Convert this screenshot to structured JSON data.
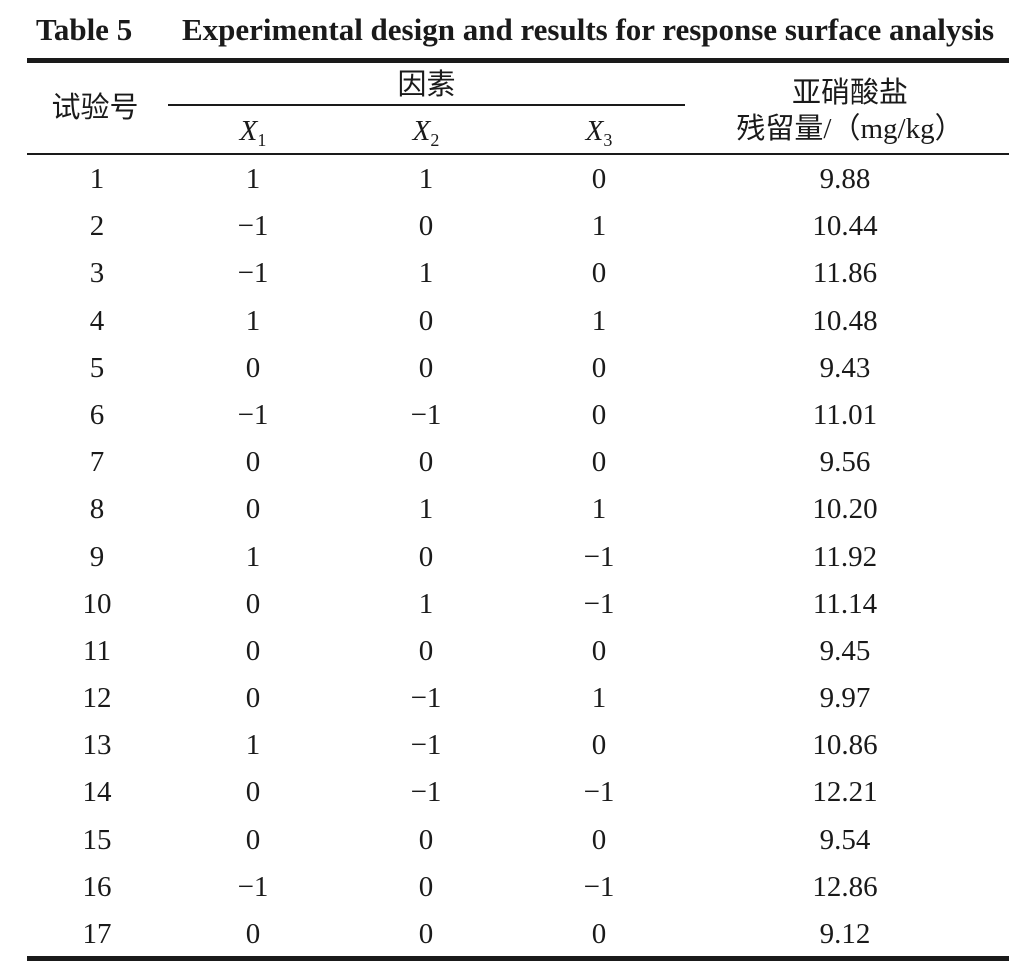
{
  "caption": {
    "label": "Table 5",
    "title": "Experimental design and results for response surface analysis"
  },
  "headers": {
    "trial": "试验号",
    "factors": "因素",
    "x1": "X",
    "x1_sub": "1",
    "x2": "X",
    "x2_sub": "2",
    "x3": "X",
    "x3_sub": "3",
    "response_line1": "亚硝酸盐",
    "response_line2": "残留量/（mg/kg）"
  },
  "rows": [
    {
      "trial": "1",
      "x1": "1",
      "x2": "1",
      "x3": "0",
      "y": "9.88"
    },
    {
      "trial": "2",
      "x1": "−1",
      "x2": "0",
      "x3": "1",
      "y": "10.44"
    },
    {
      "trial": "3",
      "x1": "−1",
      "x2": "1",
      "x3": "0",
      "y": "11.86"
    },
    {
      "trial": "4",
      "x1": "1",
      "x2": "0",
      "x3": "1",
      "y": "10.48"
    },
    {
      "trial": "5",
      "x1": "0",
      "x2": "0",
      "x3": "0",
      "y": "9.43"
    },
    {
      "trial": "6",
      "x1": "−1",
      "x2": "−1",
      "x3": "0",
      "y": "11.01"
    },
    {
      "trial": "7",
      "x1": "0",
      "x2": "0",
      "x3": "0",
      "y": "9.56"
    },
    {
      "trial": "8",
      "x1": "0",
      "x2": "1",
      "x3": "1",
      "y": "10.20"
    },
    {
      "trial": "9",
      "x1": "1",
      "x2": "0",
      "x3": "−1",
      "y": "11.92"
    },
    {
      "trial": "10",
      "x1": "0",
      "x2": "1",
      "x3": "−1",
      "y": "11.14"
    },
    {
      "trial": "11",
      "x1": "0",
      "x2": "0",
      "x3": "0",
      "y": "9.45"
    },
    {
      "trial": "12",
      "x1": "0",
      "x2": "−1",
      "x3": "1",
      "y": "9.97"
    },
    {
      "trial": "13",
      "x1": "1",
      "x2": "−1",
      "x3": "0",
      "y": "10.86"
    },
    {
      "trial": "14",
      "x1": "0",
      "x2": "−1",
      "x3": "−1",
      "y": "12.21"
    },
    {
      "trial": "15",
      "x1": "0",
      "x2": "0",
      "x3": "0",
      "y": "9.54"
    },
    {
      "trial": "16",
      "x1": "−1",
      "x2": "0",
      "x3": "−1",
      "y": "12.86"
    },
    {
      "trial": "17",
      "x1": "0",
      "x2": "0",
      "x3": "0",
      "y": "9.12"
    }
  ]
}
